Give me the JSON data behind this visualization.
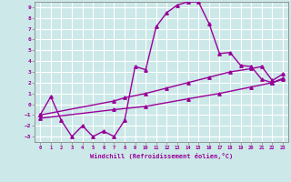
{
  "xlabel": "Windchill (Refroidissement éolien,°C)",
  "xlim": [
    -0.5,
    23.5
  ],
  "ylim": [
    -3.5,
    9.5
  ],
  "xticks": [
    0,
    1,
    2,
    3,
    4,
    5,
    6,
    7,
    8,
    9,
    10,
    11,
    12,
    13,
    14,
    15,
    16,
    17,
    18,
    19,
    20,
    21,
    22,
    23
  ],
  "yticks": [
    -3,
    -2,
    -1,
    0,
    1,
    2,
    3,
    4,
    5,
    6,
    7,
    8,
    9
  ],
  "bg_color": "#cce8e8",
  "line_color": "#990099",
  "grid_color": "#aacccc",
  "line1_x": [
    0,
    1,
    2,
    3,
    4,
    5,
    6,
    7,
    8,
    9,
    10,
    11,
    12,
    13,
    14,
    15,
    16,
    17,
    18,
    19,
    20,
    21,
    22,
    23
  ],
  "line1_y": [
    -1.0,
    0.7,
    -1.5,
    -3.0,
    -2.0,
    -3.0,
    -2.5,
    -3.0,
    -1.5,
    3.5,
    3.2,
    7.2,
    8.5,
    9.2,
    9.5,
    9.5,
    7.5,
    4.7,
    4.8,
    3.6,
    3.5,
    2.3,
    2.0,
    2.4
  ],
  "line2_x": [
    0,
    7,
    8,
    10,
    12,
    14,
    16,
    18,
    20,
    21,
    22,
    23
  ],
  "line2_y": [
    -1.0,
    0.3,
    0.6,
    1.0,
    1.5,
    2.0,
    2.5,
    3.0,
    3.3,
    3.5,
    2.2,
    2.8
  ],
  "line3_x": [
    0,
    7,
    10,
    14,
    17,
    20,
    22,
    23
  ],
  "line3_y": [
    -1.3,
    -0.5,
    -0.2,
    0.5,
    1.0,
    1.6,
    2.0,
    2.3
  ],
  "marker": "^",
  "markersize": 2.5,
  "linewidth": 1.0
}
